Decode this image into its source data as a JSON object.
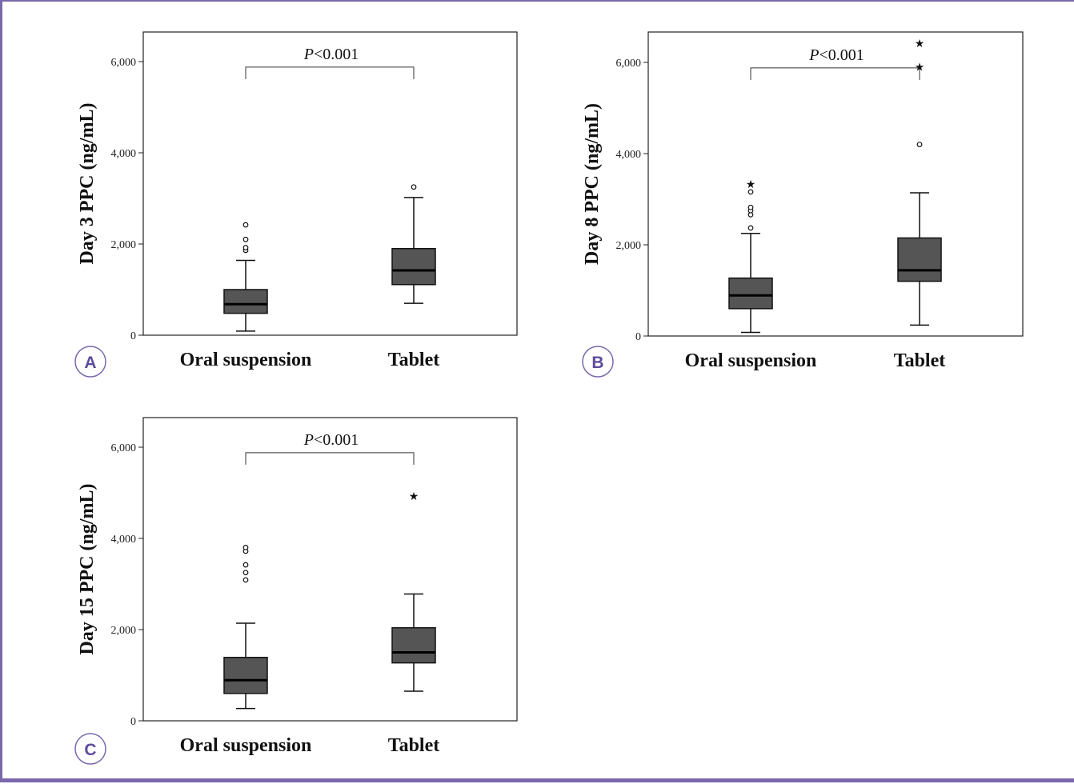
{
  "colors": {
    "frame": "#7a68ad",
    "box_fill": "#555555",
    "panel_letter": "#5e4b9c"
  },
  "chart_data": [
    {
      "panel_label": "A",
      "type": "boxplot",
      "ylabel": "Day 3 PPC (ng/mL)",
      "ylim": [
        0,
        6600
      ],
      "yticks": [
        0,
        2000,
        4000,
        6000
      ],
      "ytick_labels": [
        "0",
        "2,000",
        "4,000",
        "6,000"
      ],
      "categories": [
        "Oral suspension",
        "Tablet"
      ],
      "comparison_label": "P<0.001",
      "comparison_bracket_y": 5880,
      "groups": [
        {
          "category": "Oral suspension",
          "whisker_low": 90,
          "q1": 480,
          "median": 680,
          "q3": 1000,
          "whisker_high": 1640,
          "outliers": [
            1860,
            1920,
            2100,
            2420
          ],
          "extremes": []
        },
        {
          "category": "Tablet",
          "whisker_low": 700,
          "q1": 1110,
          "median": 1420,
          "q3": 1900,
          "whisker_high": 3020,
          "outliers": [
            3250
          ],
          "extremes": []
        }
      ],
      "grid": false
    },
    {
      "panel_label": "B",
      "type": "boxplot",
      "ylabel": "Day 8 PPC (ng/mL)",
      "ylim": [
        0,
        6600
      ],
      "yticks": [
        0,
        2000,
        4000,
        6000
      ],
      "ytick_labels": [
        "0",
        "2,000",
        "4,000",
        "6,000"
      ],
      "categories": [
        "Oral suspension",
        "Tablet"
      ],
      "comparison_label": "P<0.001",
      "comparison_bracket_y": 5880,
      "groups": [
        {
          "category": "Oral suspension",
          "whisker_low": 80,
          "q1": 600,
          "median": 890,
          "q3": 1270,
          "whisker_high": 2250,
          "outliers": [
            2370,
            2660,
            2750,
            2820,
            3160
          ],
          "extremes": [
            3350
          ]
        },
        {
          "category": "Tablet",
          "whisker_low": 240,
          "q1": 1200,
          "median": 1440,
          "q3": 2150,
          "whisker_high": 3140,
          "outliers": [
            4200
          ],
          "extremes": [
            5920,
            6440
          ]
        }
      ],
      "grid": false
    },
    {
      "panel_label": "C",
      "type": "boxplot",
      "ylabel": "Day 15 PPC (ng/mL)",
      "ylim": [
        0,
        6600
      ],
      "yticks": [
        0,
        2000,
        4000,
        6000
      ],
      "ytick_labels": [
        "0",
        "2,000",
        "4,000",
        "6,000"
      ],
      "categories": [
        "Oral suspension",
        "Tablet"
      ],
      "comparison_label": "P<0.001",
      "comparison_bracket_y": 5880,
      "groups": [
        {
          "category": "Oral suspension",
          "whisker_low": 270,
          "q1": 600,
          "median": 890,
          "q3": 1390,
          "whisker_high": 2140,
          "outliers": [
            3090,
            3250,
            3420,
            3720,
            3800
          ],
          "extremes": []
        },
        {
          "category": "Tablet",
          "whisker_low": 650,
          "q1": 1270,
          "median": 1500,
          "q3": 2040,
          "whisker_high": 2780,
          "outliers": [],
          "extremes": [
            4950
          ]
        }
      ],
      "grid": false
    }
  ]
}
